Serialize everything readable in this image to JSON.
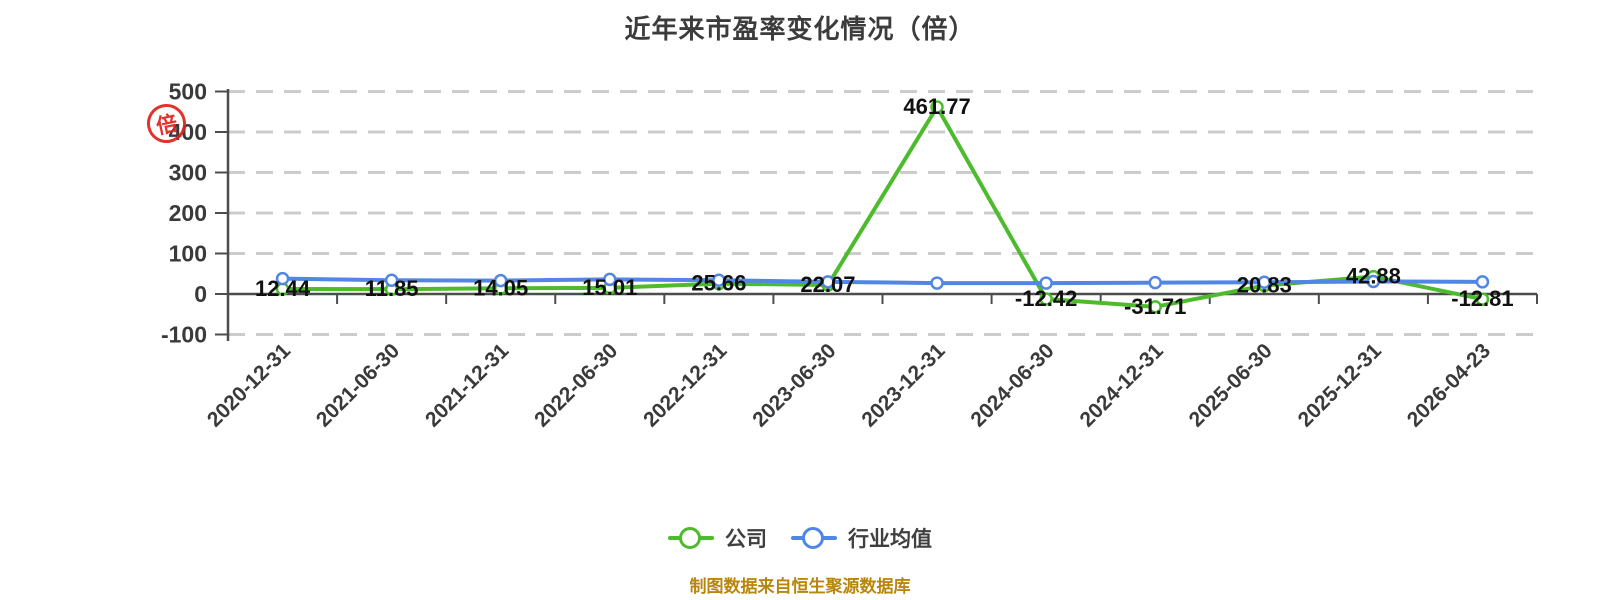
{
  "title": "近年来市盈率变化情况（倍）",
  "y_axis_unit_stamp": "倍",
  "caption": "制图数据来自恒生聚源数据库",
  "chart_data": {
    "type": "line",
    "title": "近年来市盈率变化情况（倍）",
    "categories": [
      "2020-12-31",
      "2021-06-30",
      "2021-12-31",
      "2022-06-30",
      "2022-12-31",
      "2023-06-30",
      "2023-12-31",
      "2024-06-30",
      "2024-12-31",
      "2025-06-30",
      "2025-12-31",
      "2026-04-23"
    ],
    "series": [
      {
        "name": "公司",
        "color": "#4CBB2C",
        "marker": "circle-white-fill",
        "values": [
          12.44,
          11.85,
          14.05,
          15.01,
          25.66,
          22.07,
          461.77,
          -12.42,
          -31.71,
          20.83,
          42.88,
          -12.81
        ],
        "labels": [
          "12.44",
          "11.85",
          "14.05",
          "15.01",
          "25.66",
          "22.07",
          "461.77",
          "-12.42",
          "-31.71",
          "20.83",
          "42.88",
          "-12.81"
        ]
      },
      {
        "name": "行业均值",
        "color": "#5286E4",
        "marker": "circle-white-fill",
        "values": [
          38,
          34,
          33,
          36,
          34,
          30,
          27,
          27,
          28,
          29,
          31,
          30
        ],
        "values_estimated": true
      }
    ],
    "ylim": [
      -100,
      500
    ],
    "yticks": [
      -100,
      0,
      100,
      200,
      300,
      400,
      500
    ],
    "grid": "horizontal-dashed",
    "legend_position": "bottom",
    "x_tick_rotation": 45
  },
  "colors": {
    "company_line": "#4CBB2C",
    "industry_line": "#5286E4",
    "grid": "#cccccc",
    "axis": "#4d4d4d",
    "title_text": "#3c3c3c",
    "tick_text": "#3a3a3a",
    "data_label": "#111111",
    "caption_text": "#b8860b",
    "stamp": "#e0231e",
    "background": "#ffffff"
  }
}
